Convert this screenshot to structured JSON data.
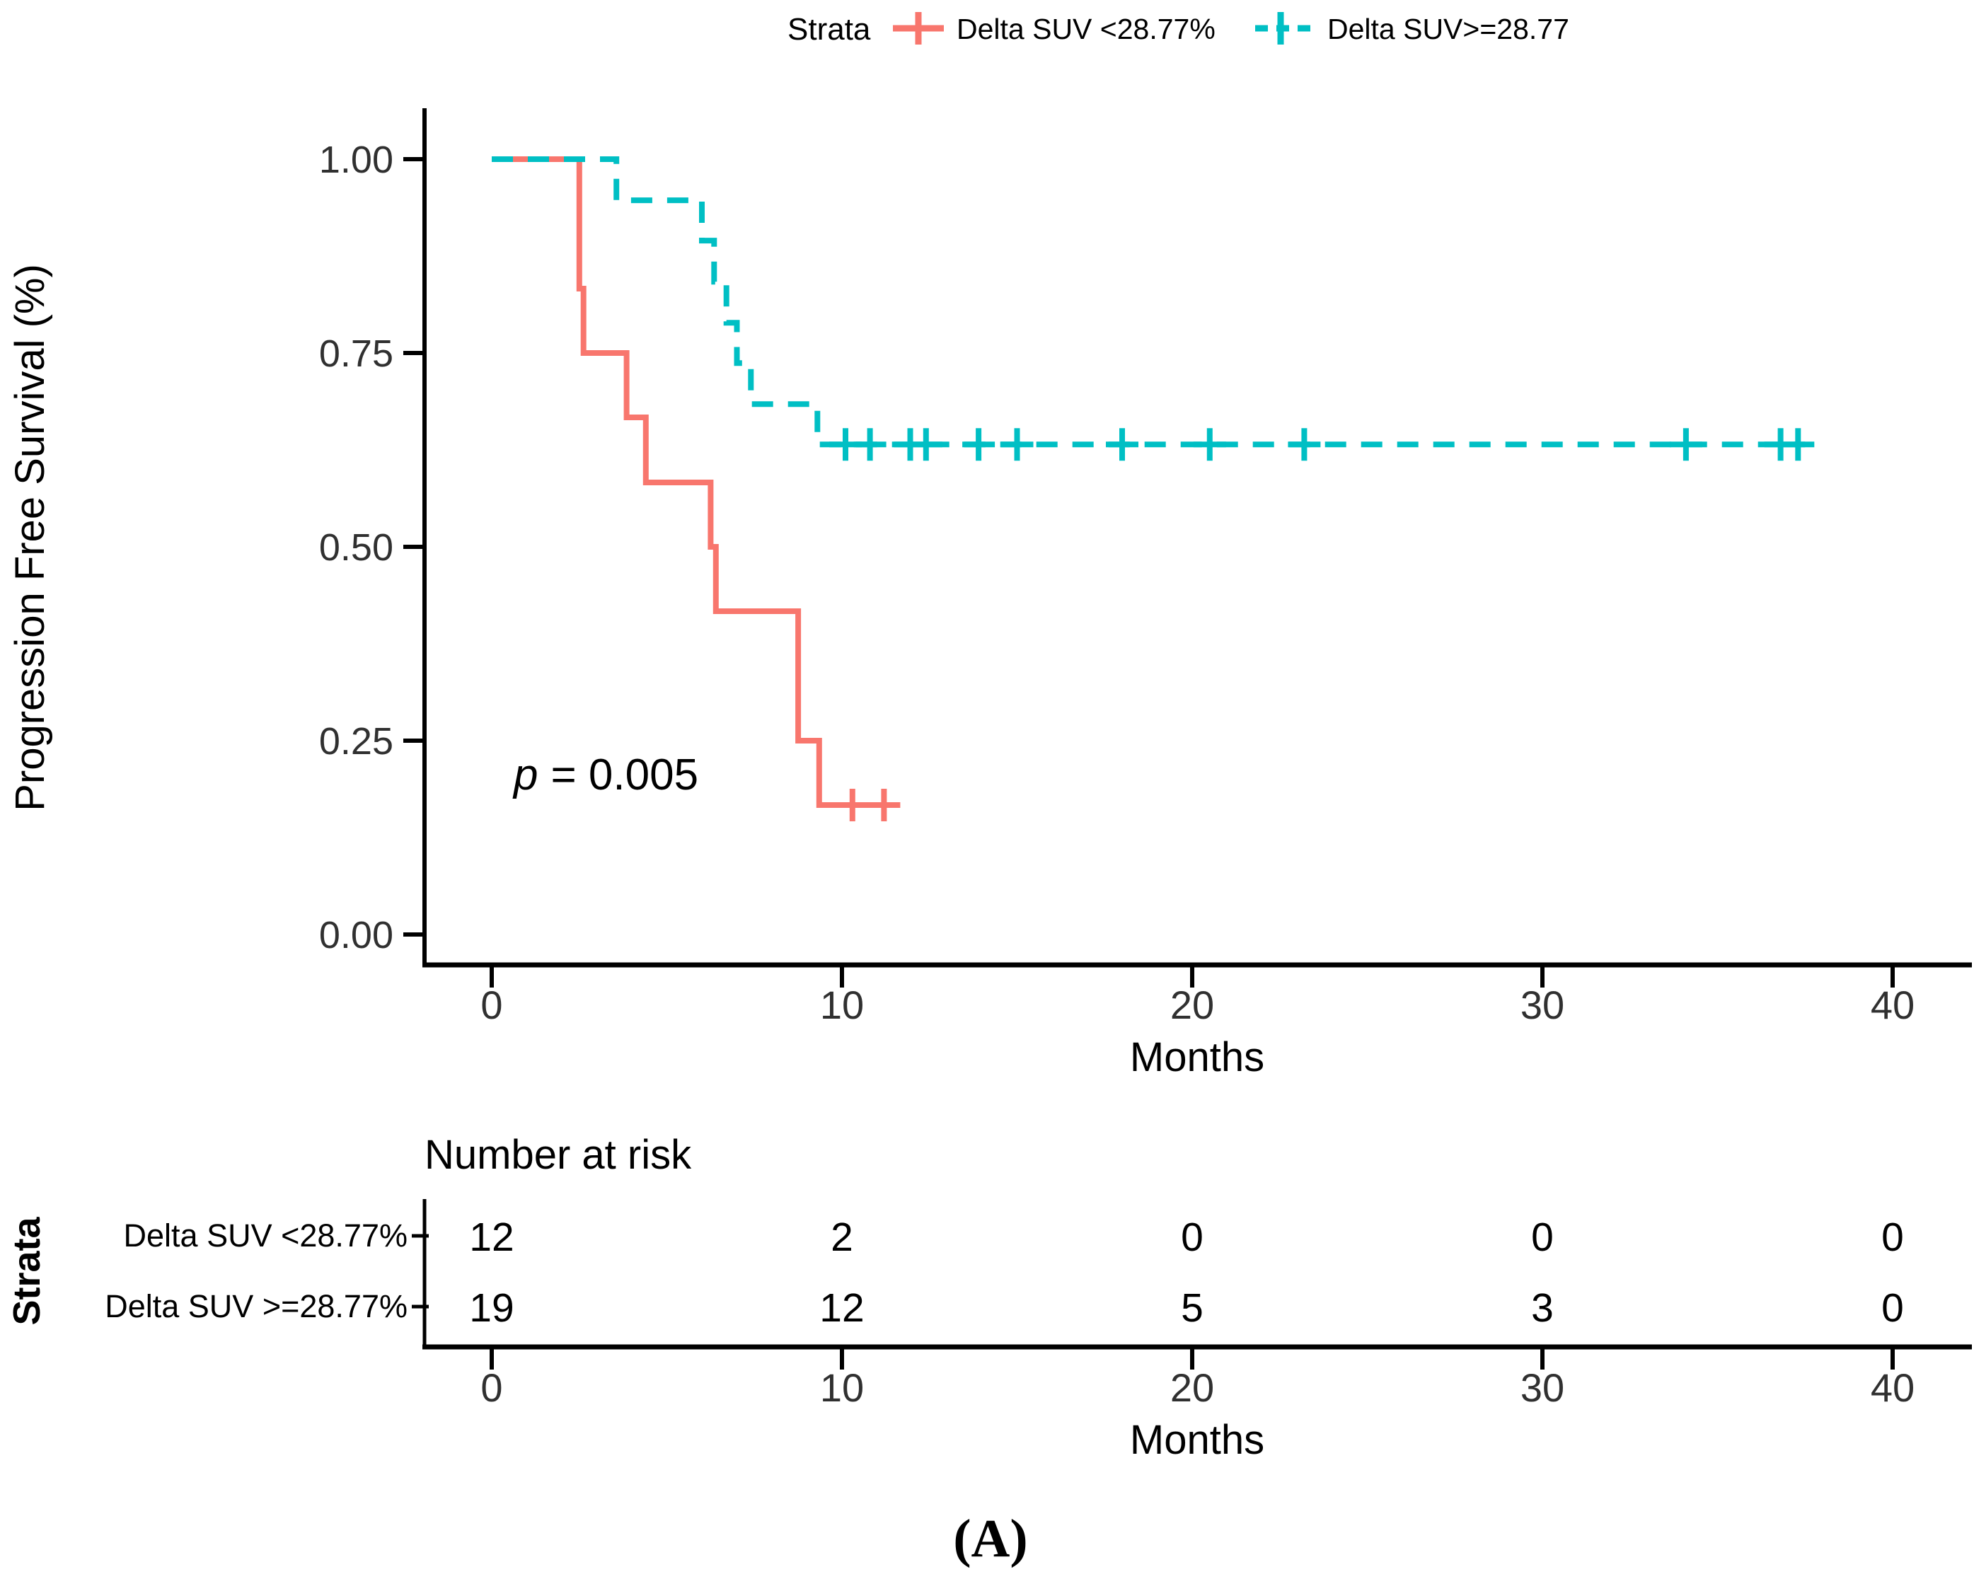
{
  "legend": {
    "title": "Strata",
    "items": [
      {
        "id": "low",
        "label": "Delta SUV <28.77%",
        "color": "#F8766D",
        "line_style": "solid"
      },
      {
        "id": "high",
        "label": "Delta SUV>=28.77",
        "color": "#00BFC4",
        "line_style": "dashed"
      }
    ]
  },
  "annotation": {
    "p_symbol": "p",
    "p_rest": "= 0.005"
  },
  "axes": {
    "y_title": "Progression Free Survival (%)",
    "x_title": "Months",
    "y_ticks": [
      "1.00",
      "0.75",
      "0.50",
      "0.25",
      "0.00"
    ],
    "x_ticks": [
      "0",
      "10",
      "20",
      "30",
      "40"
    ]
  },
  "risk_table": {
    "title": "Number at risk",
    "axis_label": "Strata",
    "x_title": "Months",
    "x_ticks": [
      "0",
      "10",
      "20",
      "30",
      "40"
    ],
    "rows": [
      {
        "label": "Delta SUV <28.77%",
        "values": [
          12,
          2,
          0,
          0,
          0
        ]
      },
      {
        "label": "Delta SUV >=28.77%",
        "values": [
          19,
          12,
          5,
          3,
          0
        ]
      }
    ]
  },
  "figure_label": "(A)",
  "chart_data": {
    "type": "line",
    "subtype": "kaplan-meier-step",
    "title": "",
    "xlabel": "Months",
    "ylabel": "Progression Free Survival (%)",
    "xlim": [
      0,
      42.3
    ],
    "ylim": [
      0,
      1
    ],
    "x_tick_values": [
      0,
      10,
      20,
      30,
      40
    ],
    "y_tick_values": [
      0.0,
      0.25,
      0.5,
      0.75,
      1.0
    ],
    "grid": false,
    "legend_position": "top",
    "p_value": 0.005,
    "series": [
      {
        "id": "low",
        "name": "Delta SUV <28.77%",
        "color": "#F8766D",
        "line_style": "solid",
        "n_at_start": 12,
        "points": [
          [
            0,
            1.0
          ],
          [
            2.5,
            1.0
          ],
          [
            2.5,
            0.833
          ],
          [
            2.62,
            0.833
          ],
          [
            2.62,
            0.75
          ],
          [
            3.85,
            0.75
          ],
          [
            3.85,
            0.667
          ],
          [
            4.4,
            0.667
          ],
          [
            4.4,
            0.583
          ],
          [
            6.25,
            0.583
          ],
          [
            6.25,
            0.5
          ],
          [
            6.4,
            0.5
          ],
          [
            6.4,
            0.417
          ],
          [
            8.75,
            0.417
          ],
          [
            8.75,
            0.25
          ],
          [
            9.35,
            0.25
          ],
          [
            9.35,
            0.167
          ],
          [
            11.5,
            0.167
          ]
        ],
        "censored": [
          [
            10.3,
            0.167
          ],
          [
            11.2,
            0.167
          ]
        ]
      },
      {
        "id": "high",
        "name": "Delta SUV>=28.77",
        "color": "#00BFC4",
        "line_style": "dashed",
        "n_at_start": 19,
        "points": [
          [
            0,
            1.0
          ],
          [
            3.56,
            1.0
          ],
          [
            3.56,
            0.947
          ],
          [
            6.0,
            0.947
          ],
          [
            6.0,
            0.895
          ],
          [
            6.35,
            0.895
          ],
          [
            6.35,
            0.842
          ],
          [
            6.7,
            0.842
          ],
          [
            6.7,
            0.789
          ],
          [
            7.0,
            0.789
          ],
          [
            7.0,
            0.737
          ],
          [
            7.4,
            0.737
          ],
          [
            7.4,
            0.684
          ],
          [
            9.3,
            0.684
          ],
          [
            9.3,
            0.632
          ],
          [
            37.5,
            0.632
          ]
        ],
        "censored": [
          [
            10.1,
            0.632
          ],
          [
            10.8,
            0.632
          ],
          [
            11.95,
            0.632
          ],
          [
            12.4,
            0.632
          ],
          [
            13.9,
            0.632
          ],
          [
            15.0,
            0.632
          ],
          [
            18.0,
            0.632
          ],
          [
            20.5,
            0.632
          ],
          [
            23.2,
            0.632
          ],
          [
            34.1,
            0.632
          ],
          [
            36.8,
            0.632
          ],
          [
            37.3,
            0.632
          ]
        ]
      }
    ]
  }
}
